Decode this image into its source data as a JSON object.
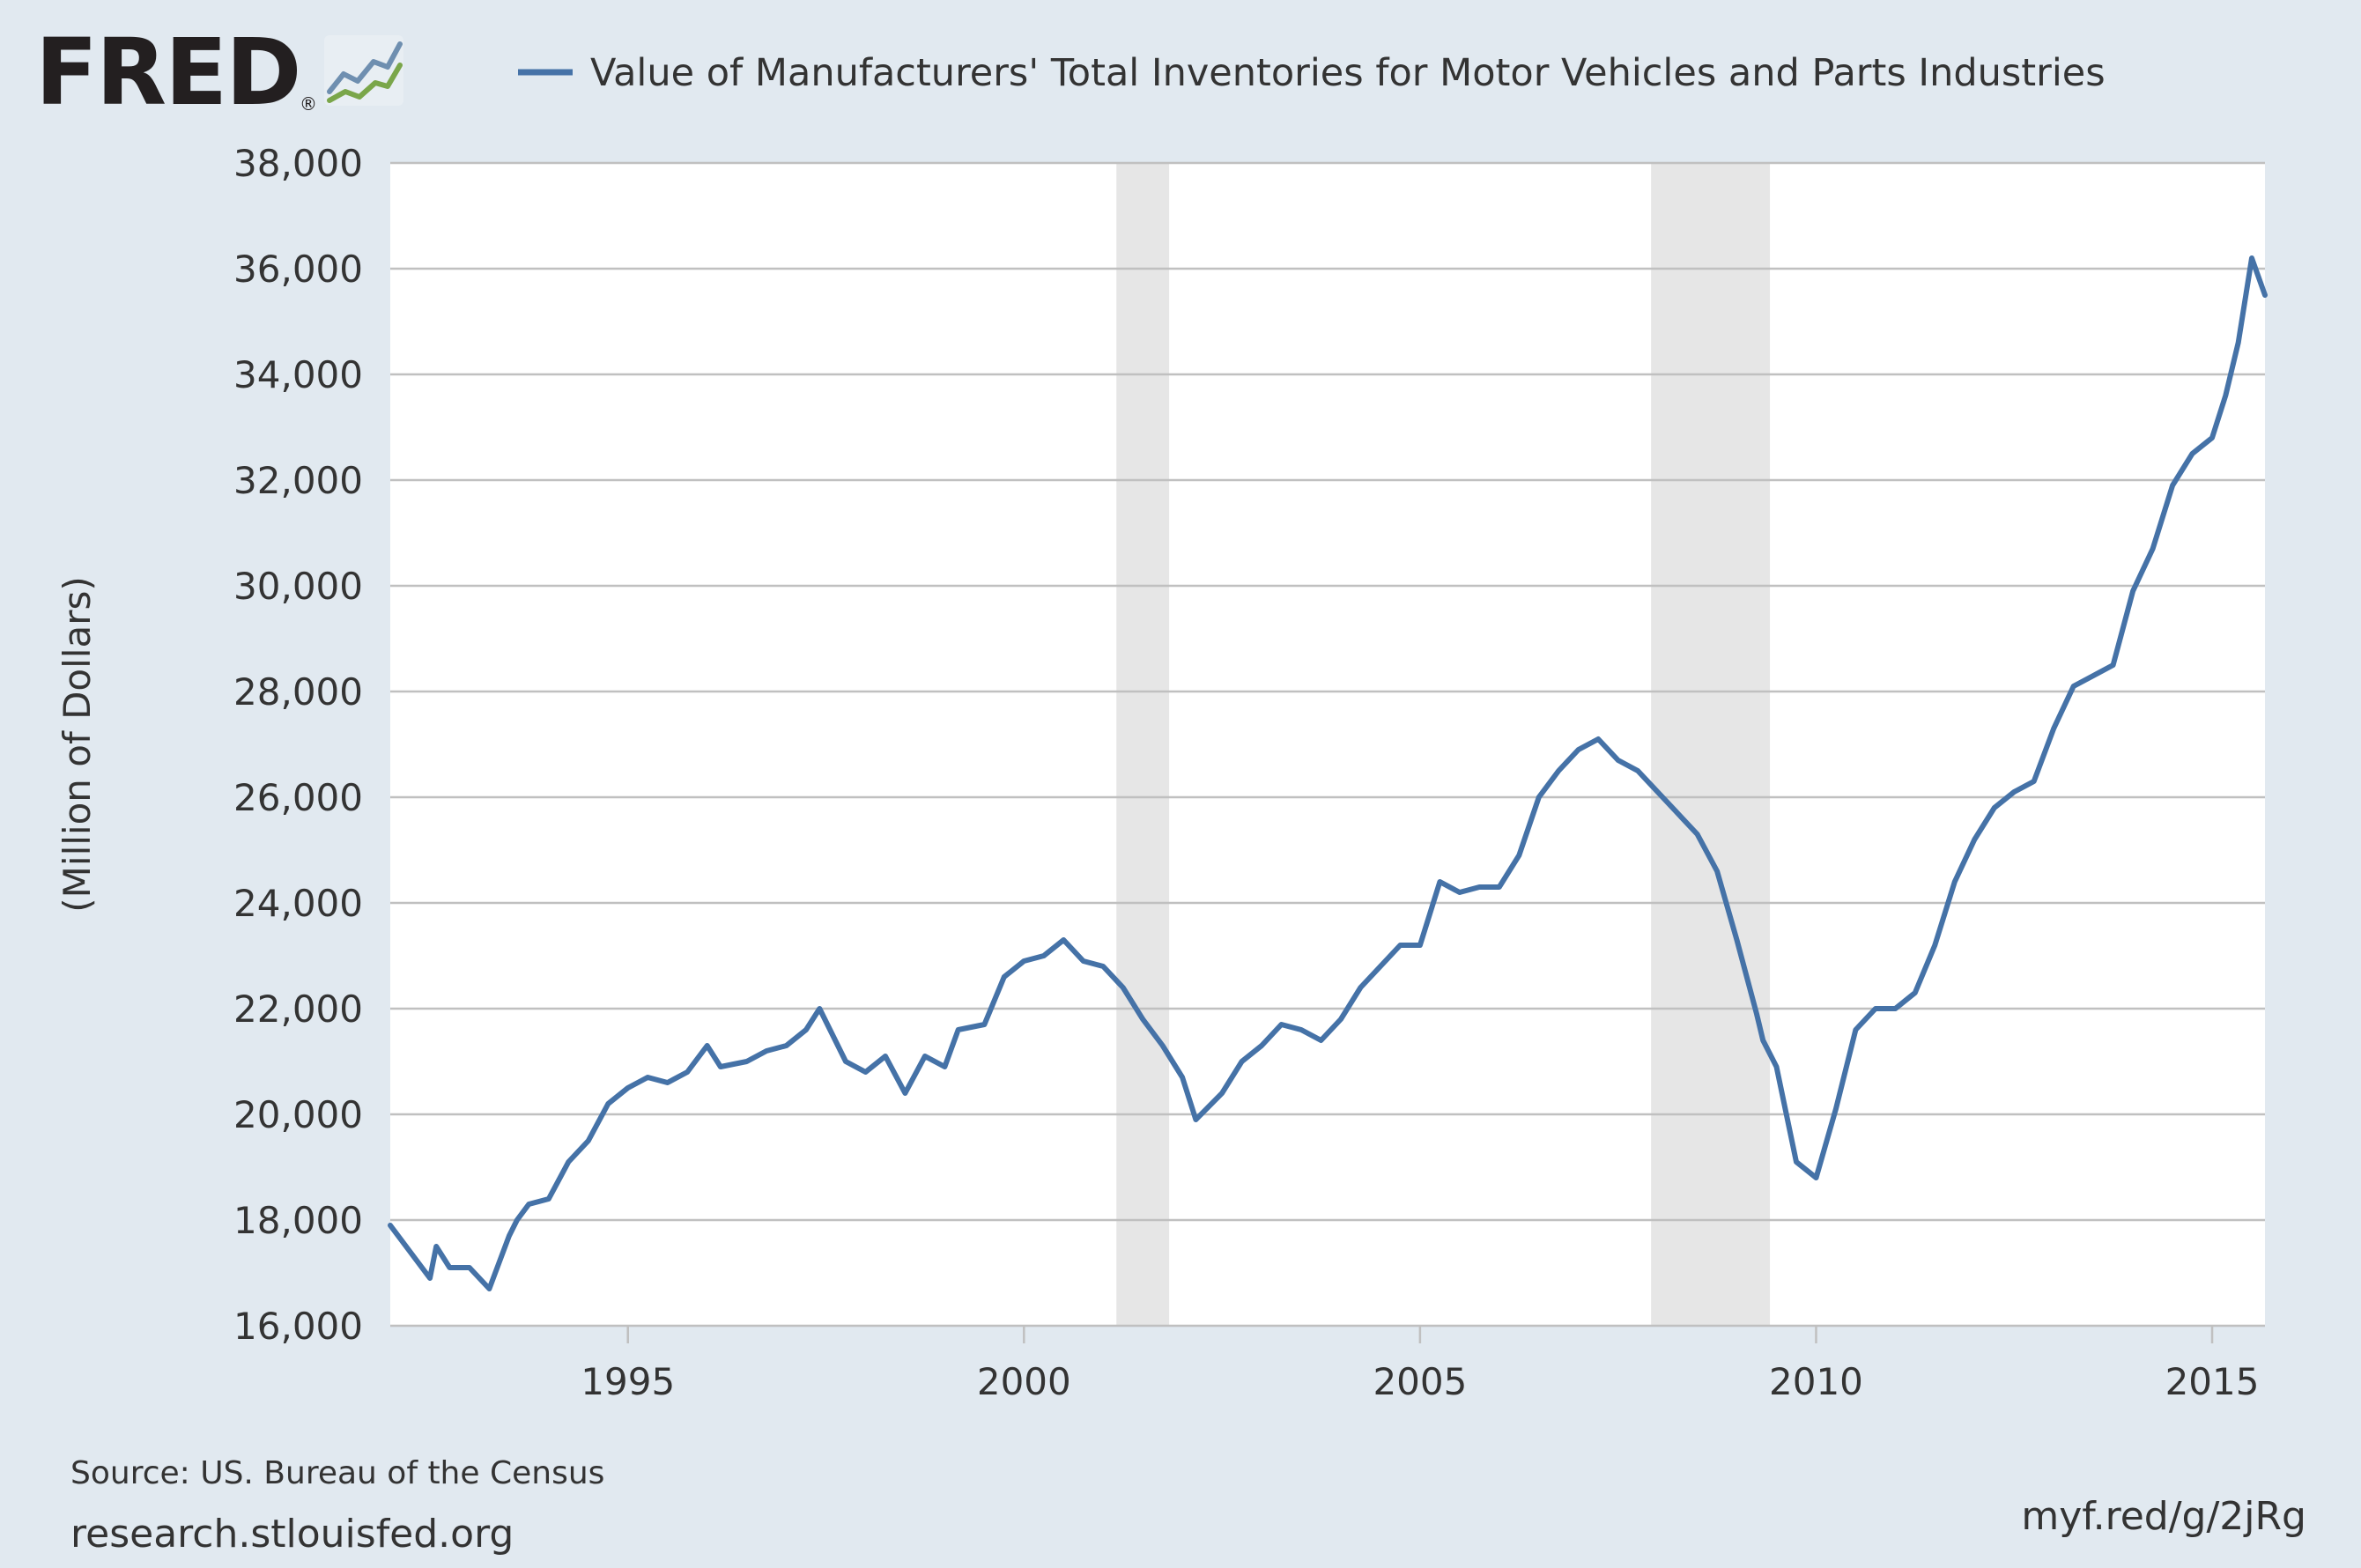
{
  "brand": {
    "logo_text": "FRED",
    "registered_mark": "®",
    "logo_icon": "trend-lines-icon"
  },
  "colors": {
    "background": "#e1e9f0",
    "plot_background": "#ffffff",
    "series_line": "#4572a7",
    "grid": "#c0c0c0",
    "recession": "#e6e6e6",
    "text": "#333333"
  },
  "chart_data": {
    "type": "line",
    "title": "Value of Manufacturers' Total Inventories for Motor Vehicles and Parts Industries",
    "ylabel": "(Million of Dollars)",
    "xlabel": "",
    "ylim": [
      16000,
      38000
    ],
    "xlim": [
      1992.0,
      2015.667
    ],
    "grid": true,
    "legend": "top",
    "y_ticks": [
      16000,
      18000,
      20000,
      22000,
      24000,
      26000,
      28000,
      30000,
      32000,
      34000,
      36000,
      38000
    ],
    "y_tick_labels": [
      "16,000",
      "18,000",
      "20,000",
      "22,000",
      "24,000",
      "26,000",
      "28,000",
      "30,000",
      "32,000",
      "34,000",
      "36,000",
      "38,000"
    ],
    "x_ticks": [
      1995,
      2000,
      2005,
      2010,
      2015
    ],
    "x_tick_labels": [
      "1995",
      "2000",
      "2005",
      "2010",
      "2015"
    ],
    "recessions": [
      {
        "start": 2001.167,
        "end": 2001.833
      },
      {
        "start": 2007.917,
        "end": 2009.417
      }
    ],
    "series": [
      {
        "name": "Value of Manufacturers' Total Inventories for Motor Vehicles and Parts Industries",
        "x": [
          1992.0,
          1992.25,
          1992.5,
          1992.58,
          1992.75,
          1993.0,
          1993.25,
          1993.5,
          1993.6,
          1993.75,
          1994.0,
          1994.25,
          1994.5,
          1994.75,
          1995.0,
          1995.25,
          1995.5,
          1995.75,
          1996.0,
          1996.17,
          1996.5,
          1996.75,
          1997.0,
          1997.25,
          1997.42,
          1997.75,
          1998.0,
          1998.25,
          1998.5,
          1998.75,
          1999.0,
          1999.17,
          1999.5,
          1999.75,
          2000.0,
          2000.25,
          2000.5,
          2000.75,
          2001.0,
          2001.25,
          2001.5,
          2001.75,
          2002.0,
          2002.17,
          2002.5,
          2002.75,
          2003.0,
          2003.25,
          2003.5,
          2003.75,
          2004.0,
          2004.25,
          2004.5,
          2004.75,
          2005.0,
          2005.25,
          2005.5,
          2005.75,
          2006.0,
          2006.25,
          2006.5,
          2006.75,
          2007.0,
          2007.25,
          2007.5,
          2007.75,
          2008.0,
          2008.25,
          2008.5,
          2008.75,
          2009.0,
          2009.25,
          2009.33,
          2009.5,
          2009.75,
          2010.0,
          2010.25,
          2010.5,
          2010.75,
          2011.0,
          2011.25,
          2011.5,
          2011.75,
          2012.0,
          2012.25,
          2012.5,
          2012.75,
          2013.0,
          2013.25,
          2013.5,
          2013.75,
          2014.0,
          2014.25,
          2014.5,
          2014.75,
          2015.0,
          2015.17,
          2015.33,
          2015.5,
          2015.667
        ],
        "values": [
          17900,
          17400,
          16900,
          17500,
          17100,
          17100,
          16700,
          17700,
          18000,
          18300,
          18400,
          19100,
          19500,
          20200,
          20500,
          20700,
          20600,
          20800,
          21300,
          20900,
          21000,
          21200,
          21300,
          21600,
          22000,
          21000,
          20800,
          21100,
          20400,
          21100,
          20900,
          21600,
          21700,
          22600,
          22900,
          23000,
          23300,
          22900,
          22800,
          22400,
          21800,
          21300,
          20700,
          19900,
          20400,
          21000,
          21300,
          21700,
          21600,
          21400,
          21800,
          22400,
          22800,
          23200,
          23200,
          24400,
          24200,
          24300,
          24300,
          24900,
          26000,
          26500,
          26900,
          27100,
          26700,
          26500,
          26100,
          25700,
          25300,
          24600,
          23300,
          21900,
          21400,
          20900,
          19100,
          18800,
          20100,
          21600,
          22000,
          22000,
          22300,
          23200,
          24400,
          25200,
          25800,
          26100,
          26300,
          27300,
          28100,
          28300,
          28500,
          29900,
          30700,
          31900,
          32500,
          32800,
          33600,
          34600,
          36200,
          35500
        ]
      }
    ]
  },
  "footer": {
    "source": "Source: US. Bureau of the Census",
    "site": "research.stlouisfed.org",
    "short_url": "myf.red/g/2jRg"
  }
}
